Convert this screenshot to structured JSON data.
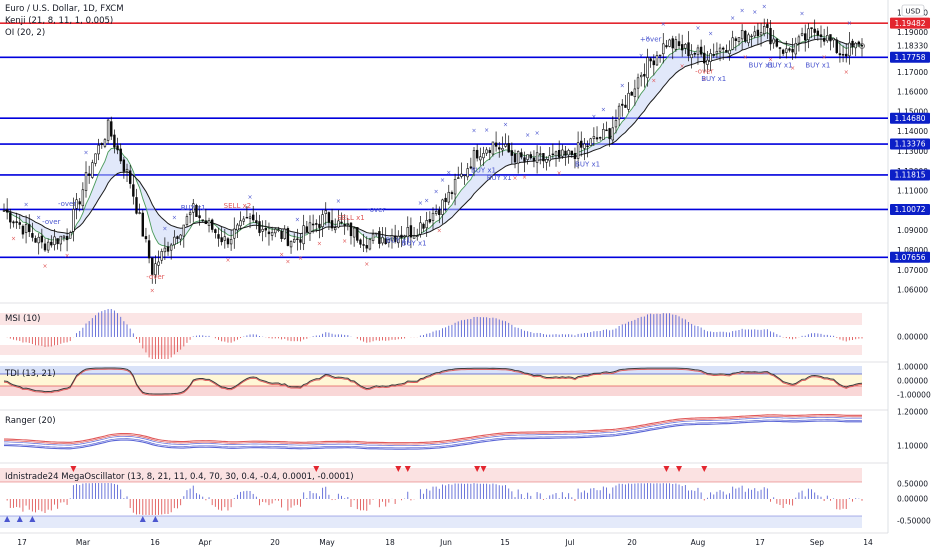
{
  "header": {
    "symbol_line": "Euro / U.S. Dollar, 1D, FXCM",
    "indicator_1": "Kenji (21, 8, 11, 1, 0.005)",
    "indicator_2": "OI (20, 2)"
  },
  "currency_badge": "USD",
  "colors": {
    "up": "#0a0a0a",
    "down": "#0a0a0a",
    "hline": "#0000dd",
    "resistance": "#e3262f",
    "buy_marker": "#4b56cf",
    "sell_marker": "#e05858",
    "grid": "#eef0f4",
    "badge_blue": "#0b1fc7",
    "badge_red": "#e3262f"
  },
  "x_ticks": [
    "17",
    "Mar",
    "16",
    "Apr",
    "20",
    "May",
    "18",
    "Jun",
    "15",
    "Jul",
    "20",
    "Aug",
    "17",
    "Sep",
    "14"
  ],
  "price_ticks": [
    "1.20000",
    "1.19000",
    "1.18330",
    "1.17000",
    "1.16000",
    "1.15000",
    "1.14000",
    "1.13000",
    "1.12000",
    "1.11000",
    "1.10000",
    "1.09000",
    "1.08000",
    "1.07000",
    "1.06000"
  ],
  "price_badges": [
    {
      "value": "1.19482",
      "color": "#e3262f",
      "price": 1.19482
    },
    {
      "value": "1.17758",
      "color": "#0b1fc7",
      "price": 1.17758
    },
    {
      "value": "1.14680",
      "color": "#0b1fc7",
      "price": 1.1468
    },
    {
      "value": "1.13376",
      "color": "#0b1fc7",
      "price": 1.13376
    },
    {
      "value": "1.11815",
      "color": "#0b1fc7",
      "price": 1.11815
    },
    {
      "value": "1.10072",
      "color": "#0b1fc7",
      "price": 1.10072
    },
    {
      "value": "1.07656",
      "color": "#0b1fc7",
      "price": 1.07656
    }
  ],
  "annotations": [
    {
      "text": "-over",
      "color": "#4b56cf",
      "day": 20,
      "price": 1.1025
    },
    {
      "text": "-over",
      "color": "#4b56cf",
      "day": 15,
      "price": 1.0935
    },
    {
      "text": "BUY x1",
      "color": "#4b56cf",
      "day": 60,
      "price": 1.1005
    },
    {
      "text": "SELL x2",
      "color": "#e05858",
      "day": 74,
      "price": 1.1015
    },
    {
      "text": "SELL x1",
      "color": "#e05858",
      "day": 110,
      "price": 1.0955
    },
    {
      "text": "-over",
      "color": "#4b56cf",
      "day": 118,
      "price": 1.0995
    },
    {
      "text": "BUY x1",
      "color": "#4b56cf",
      "day": 125,
      "price": 1.084
    },
    {
      "text": "BUY x1",
      "color": "#4b56cf",
      "day": 130,
      "price": 1.0825
    },
    {
      "text": "-over",
      "color": "#e05858",
      "day": 48,
      "price": 1.0655
    },
    {
      "text": "BUY x1",
      "color": "#4b56cf",
      "day": 152,
      "price": 1.1195
    },
    {
      "text": "BUY x1",
      "color": "#4b56cf",
      "day": 157,
      "price": 1.1155
    },
    {
      "text": "BUY x1",
      "color": "#4b56cf",
      "day": 185,
      "price": 1.1225
    },
    {
      "text": "+over",
      "color": "#4b56cf",
      "day": 205,
      "price": 1.1855
    },
    {
      "text": "-over",
      "color": "#e05858",
      "day": 222,
      "price": 1.1695
    },
    {
      "text": "BUY x1",
      "color": "#4b56cf",
      "day": 225,
      "price": 1.1655
    },
    {
      "text": "BUY x1",
      "color": "#4b56cf",
      "day": 240,
      "price": 1.1725
    },
    {
      "text": "BUY x1",
      "color": "#4b56cf",
      "day": 246,
      "price": 1.1725
    },
    {
      "text": "BUY x1",
      "color": "#4b56cf",
      "day": 258,
      "price": 1.1725
    }
  ],
  "panes": {
    "msi": {
      "label": "MSI (10)",
      "ticks": [
        "0.00000"
      ]
    },
    "tdi": {
      "label": "TDI (13, 21)",
      "ticks": [
        "1.00000",
        "0.00000",
        "-1.00000"
      ]
    },
    "ranger": {
      "label": "Ranger (20)",
      "ticks": [
        "1.20000",
        "1.10000"
      ]
    },
    "mega": {
      "label": "Idnistrade24 MegaOscillator (13, 8, 21, 11, 0.4, 70, 30, 0.4, -0.4, 0.0001, -0.0001)",
      "ticks": [
        "0.50000",
        "0.00000",
        "-0.50000"
      ]
    }
  },
  "chart_data": {
    "type": "candlestick",
    "title": "Euro / U.S. Dollar, 1D, FXCM",
    "ylabel": "USD",
    "ylim": [
      1.055,
      1.205
    ],
    "x_tick_labels": [
      "17",
      "Mar",
      "16",
      "Apr",
      "20",
      "May",
      "18",
      "Jun",
      "15",
      "Jul",
      "20",
      "Aug",
      "17",
      "Sep",
      "14"
    ],
    "horizontal_levels": [
      1.19482,
      1.17758,
      1.1468,
      1.13376,
      1.11815,
      1.10072,
      1.07656
    ],
    "last_price": 1.1833,
    "price_path_keypoints": [
      {
        "day": 0,
        "close": 1.1003
      },
      {
        "day": 12,
        "close": 1.083
      },
      {
        "day": 20,
        "close": 1.088
      },
      {
        "day": 28,
        "close": 1.125
      },
      {
        "day": 33,
        "close": 1.142
      },
      {
        "day": 40,
        "close": 1.115
      },
      {
        "day": 47,
        "close": 1.07
      },
      {
        "day": 53,
        "close": 1.085
      },
      {
        "day": 60,
        "close": 1.1
      },
      {
        "day": 70,
        "close": 1.085
      },
      {
        "day": 78,
        "close": 1.095
      },
      {
        "day": 92,
        "close": 1.085
      },
      {
        "day": 102,
        "close": 1.097
      },
      {
        "day": 115,
        "close": 1.085
      },
      {
        "day": 130,
        "close": 1.09
      },
      {
        "day": 140,
        "close": 1.105
      },
      {
        "day": 150,
        "close": 1.13
      },
      {
        "day": 155,
        "close": 1.134
      },
      {
        "day": 165,
        "close": 1.125
      },
      {
        "day": 178,
        "close": 1.127
      },
      {
        "day": 192,
        "close": 1.14
      },
      {
        "day": 202,
        "close": 1.17
      },
      {
        "day": 210,
        "close": 1.185
      },
      {
        "day": 222,
        "close": 1.178
      },
      {
        "day": 240,
        "close": 1.193
      },
      {
        "day": 248,
        "close": 1.18
      },
      {
        "day": 258,
        "close": 1.192
      },
      {
        "day": 265,
        "close": 1.18
      },
      {
        "day": 272,
        "close": 1.1833
      }
    ]
  }
}
